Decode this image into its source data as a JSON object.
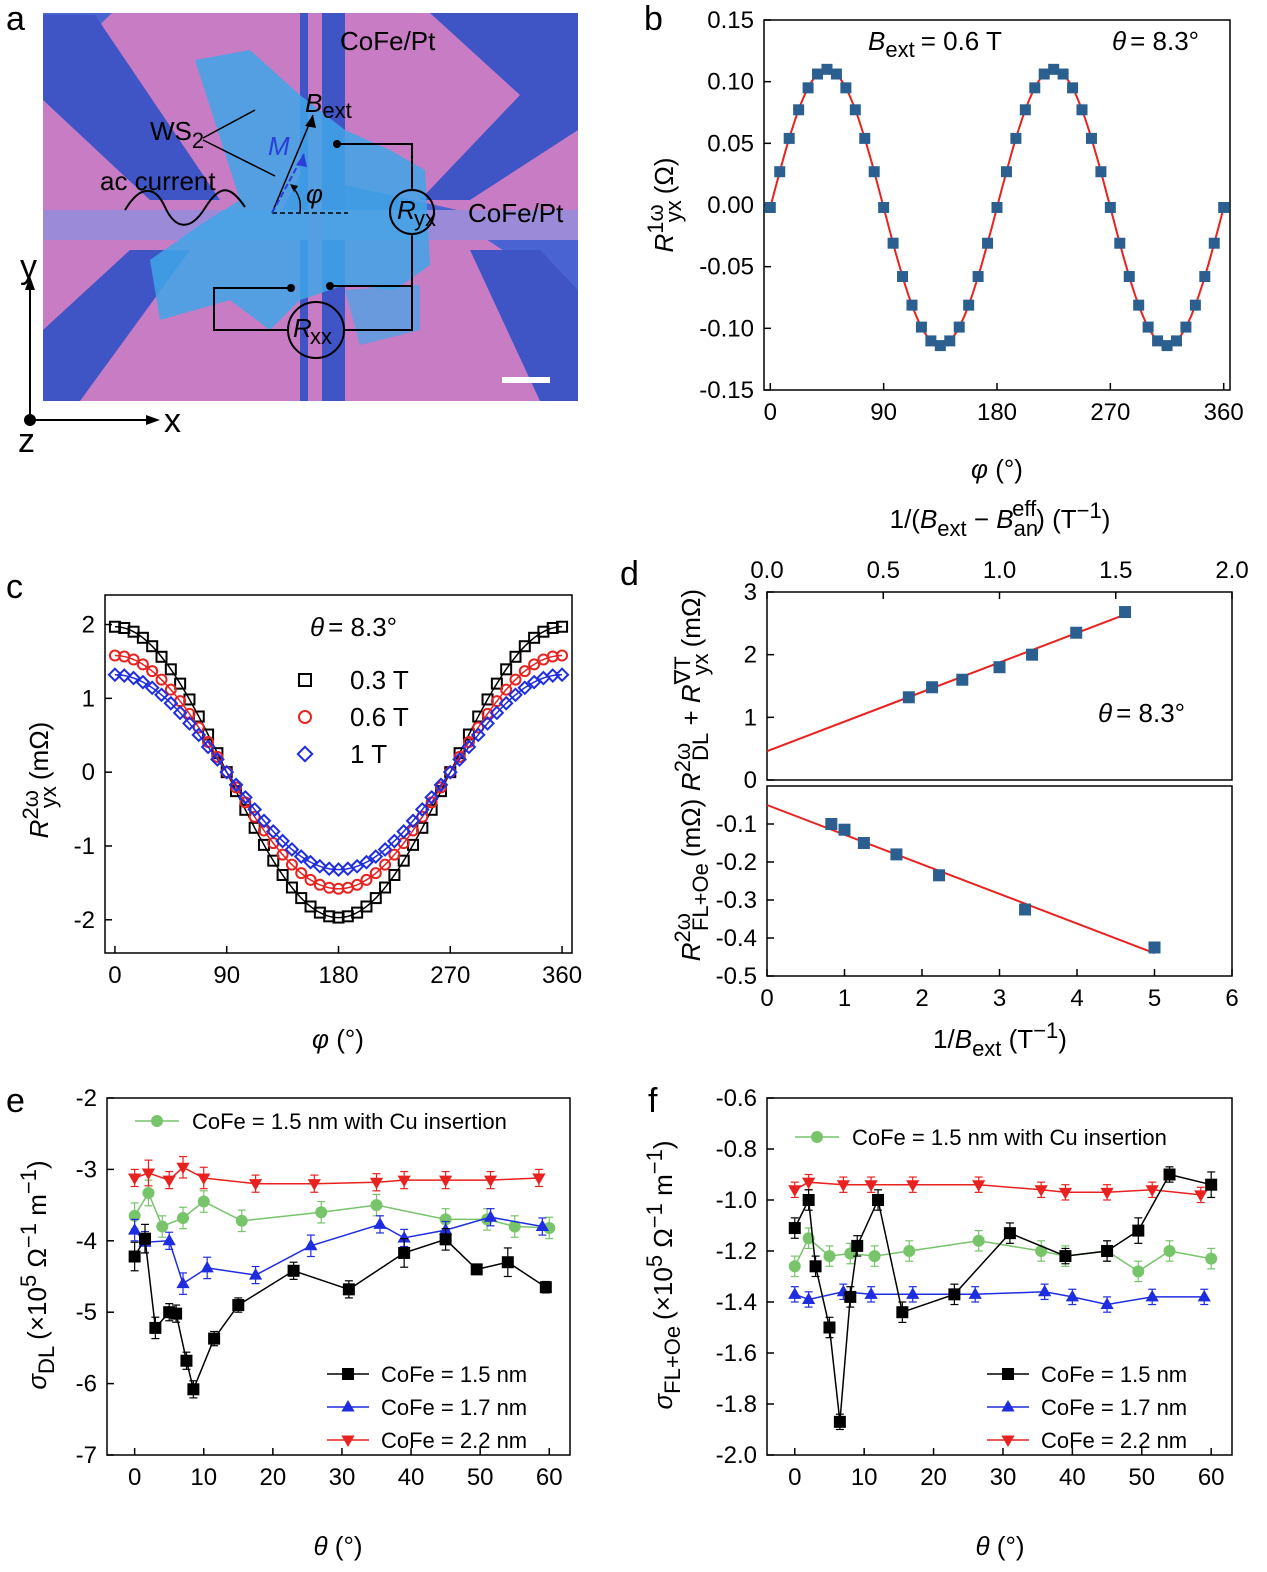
{
  "panel_letters": [
    "a",
    "b",
    "c",
    "d",
    "e",
    "f"
  ],
  "panel_a": {
    "labels": {
      "cofe_top": "CoFe/Pt",
      "cofe_right": "CoFe/Pt",
      "ws2_main": "WS",
      "ws2_sub": "2",
      "ac_current": "ac current",
      "m": "M",
      "b_main": "B",
      "b_sub": "ext",
      "phi": "φ",
      "r_main": "R",
      "ryx_sub": "yx",
      "rxx_sub": "xx"
    },
    "axes": {
      "x": "x",
      "y": "y",
      "z": "z"
    },
    "colors": {
      "substrate": "#4a63d2",
      "pads": "#c77cc4",
      "flake": "#40a6e8"
    }
  },
  "chart_data": [
    {
      "panel": "b",
      "type": "scatter",
      "xlabel": "φ (°)",
      "ylabel": "R_yx^1ω (Ω)",
      "xlim": [
        -5,
        365
      ],
      "ylim": [
        -0.15,
        0.15
      ],
      "xticks": [
        "0",
        "90",
        "180",
        "270",
        "360"
      ],
      "yticks": [
        "-0.15",
        "-0.10",
        "-0.05",
        "0.00",
        "0.05",
        "0.10",
        "0.15"
      ],
      "annotations": {
        "bext_main": "B",
        "bext_sub": "ext",
        "bext_val": "= 0.6 T",
        "theta_sym": "θ",
        "theta_val": "= 8.3°"
      },
      "model": "A*sin(2φ) + offset",
      "amplitude": 0.112,
      "offset": -0.002,
      "phi_start": 0,
      "phi_step": 7.5,
      "phi_end": 360,
      "marker_color": "#2b5f8f",
      "fit_color": "#e8221f",
      "grid": false
    },
    {
      "panel": "c",
      "type": "scatter",
      "xlabel": "φ (°)",
      "ylabel": "R_yx^2ω (mΩ)",
      "xlim": [
        -8,
        368
      ],
      "ylim": [
        -2.45,
        2.4
      ],
      "xticks": [
        "0",
        "90",
        "180",
        "270",
        "360"
      ],
      "yticks": [
        "-2",
        "-1",
        "0",
        "1",
        "2"
      ],
      "annotation": {
        "theta_sym": "θ",
        "theta_val": "= 8.3°"
      },
      "model": "A*cos(φ)",
      "phi_step": 7.5,
      "series": [
        {
          "name": "0.3 T",
          "amplitude": 1.97,
          "marker": "square",
          "color": "#000000"
        },
        {
          "name": "0.6 T",
          "amplitude": 1.58,
          "marker": "circle",
          "color": "#e8221f"
        },
        {
          "name": "1 T",
          "amplitude": 1.32,
          "marker": "diamond",
          "color": "#1f2de0"
        }
      ],
      "legend": "upper-center",
      "grid": false
    },
    {
      "panel": "d-top",
      "type": "scatter",
      "x_top_label": "1/(B_ext − B_an^eff) (T^−1)",
      "xlim": [
        0,
        2.0
      ],
      "ylim": [
        0,
        3
      ],
      "xticks_top": [
        "0.0",
        "0.5",
        "1.0",
        "1.5",
        "2.0"
      ],
      "yticks": [
        "0",
        "1",
        "2",
        "3"
      ],
      "ylabel": "R_DL^2ω + R_yx^∇T (mΩ)",
      "annotation": {
        "theta_sym": "θ",
        "theta_val": "= 8.3°"
      },
      "x": [
        0.61,
        0.71,
        0.84,
        1.0,
        1.14,
        1.33,
        1.54
      ],
      "y": [
        1.32,
        1.48,
        1.6,
        1.8,
        2.0,
        2.35,
        2.68
      ],
      "fit": {
        "x": [
          0,
          1.54
        ],
        "y": [
          0.46,
          2.64
        ]
      },
      "marker_color": "#2b5f8f",
      "fit_color": "#e8221f"
    },
    {
      "panel": "d-bottom",
      "type": "scatter",
      "xlabel": "1/B_ext (T^−1)",
      "xlim": [
        0,
        6
      ],
      "ylim": [
        -0.5,
        0
      ],
      "xticks": [
        "0",
        "1",
        "2",
        "3",
        "4",
        "5",
        "6"
      ],
      "yticks": [
        "-0.1",
        "-0.2",
        "-0.3",
        "-0.4",
        "-0.5"
      ],
      "ylabel": "R_FL+Oe^2ω (mΩ)",
      "x": [
        0.83,
        1.0,
        1.25,
        1.67,
        2.22,
        3.33,
        5.0
      ],
      "y": [
        -0.1,
        -0.115,
        -0.15,
        -0.18,
        -0.235,
        -0.325,
        -0.425
      ],
      "fit": {
        "x": [
          0,
          5.0
        ],
        "y": [
          -0.05,
          -0.44
        ]
      },
      "marker_color": "#2b5f8f",
      "fit_color": "#e8221f"
    },
    {
      "panel": "e",
      "type": "line",
      "xlabel": "θ (°)",
      "ylabel": "σ_DL (×10^5 Ω^−1 m^−1)",
      "xlim": [
        -4,
        63
      ],
      "ylim": [
        -7,
        -2
      ],
      "xticks": [
        "0",
        "10",
        "20",
        "30",
        "40",
        "50",
        "60"
      ],
      "yticks": [
        "-7",
        "-6",
        "-5",
        "-4",
        "-3",
        "-2"
      ],
      "series": [
        {
          "name": "CoFe = 1.5 nm with Cu insertion",
          "marker": "circle",
          "color": "#77c46b",
          "x": [
            0,
            2,
            4,
            7,
            10,
            15.5,
            27,
            35,
            45,
            51,
            55,
            60
          ],
          "y": [
            -3.65,
            -3.33,
            -3.8,
            -3.68,
            -3.45,
            -3.72,
            -3.6,
            -3.5,
            -3.7,
            -3.7,
            -3.8,
            -3.82
          ],
          "err": [
            0.18,
            0.18,
            0.15,
            0.15,
            0.15,
            0.15,
            0.15,
            0.15,
            0.15,
            0.15,
            0.15,
            0.15
          ]
        },
        {
          "name": "CoFe = 2.2 nm",
          "marker": "triangle-down",
          "color": "#e8221f",
          "x": [
            0,
            2,
            5,
            7,
            10,
            17.5,
            26,
            35,
            39,
            45,
            51.5,
            58.5
          ],
          "y": [
            -3.12,
            -3.05,
            -3.15,
            -2.97,
            -3.12,
            -3.2,
            -3.2,
            -3.18,
            -3.15,
            -3.15,
            -3.15,
            -3.12
          ],
          "err": [
            0.12,
            0.18,
            0.12,
            0.15,
            0.15,
            0.12,
            0.12,
            0.12,
            0.12,
            0.12,
            0.12,
            0.12
          ]
        },
        {
          "name": "CoFe = 1.7 nm",
          "marker": "triangle-up",
          "color": "#1f2de0",
          "x": [
            0,
            1.5,
            5,
            7,
            10.5,
            17.5,
            25.5,
            35.5,
            39,
            45,
            51.5,
            59
          ],
          "y": [
            -3.85,
            -4.02,
            -4.0,
            -4.6,
            -4.38,
            -4.48,
            -4.07,
            -3.77,
            -3.96,
            -3.85,
            -3.67,
            -3.8
          ],
          "err": [
            0.15,
            0.15,
            0.12,
            0.15,
            0.15,
            0.12,
            0.15,
            0.12,
            0.12,
            0.12,
            0.12,
            0.12
          ]
        },
        {
          "name": "CoFe = 1.5 nm",
          "marker": "square",
          "color": "#000000",
          "x": [
            0,
            1.5,
            3,
            5,
            6,
            7.5,
            8.5,
            11.5,
            15,
            23,
            31,
            39,
            45,
            49.5,
            54,
            59.5
          ],
          "y": [
            -4.22,
            -3.97,
            -5.22,
            -5.0,
            -5.02,
            -5.68,
            -6.08,
            -5.37,
            -4.9,
            -4.42,
            -4.68,
            -4.17,
            -3.98,
            -4.4,
            -4.3,
            -4.65
          ],
          "err": [
            0.2,
            0.2,
            0.15,
            0.12,
            0.12,
            0.12,
            0.12,
            0.1,
            0.1,
            0.12,
            0.12,
            0.2,
            0.15,
            0.05,
            0.2,
            0.08
          ]
        }
      ]
    },
    {
      "panel": "f",
      "type": "line",
      "xlabel": "θ (°)",
      "ylabel": "σ_FL+Oe (×10^5 Ω^−1 m^−1)",
      "xlim": [
        -4,
        63
      ],
      "ylim": [
        -2.0,
        -0.6
      ],
      "xticks": [
        "0",
        "10",
        "20",
        "30",
        "40",
        "50",
        "60"
      ],
      "yticks": [
        "-2.0",
        "-1.8",
        "-1.6",
        "-1.4",
        "-1.2",
        "-1.0",
        "-0.8",
        "-0.6"
      ],
      "series": [
        {
          "name": "CoFe = 1.5 nm with Cu insertion",
          "marker": "circle",
          "color": "#77c46b",
          "x": [
            0,
            2,
            5,
            8,
            11.5,
            16.5,
            26.5,
            35.5,
            39,
            45,
            49.5,
            54,
            60
          ],
          "y": [
            -1.26,
            -1.15,
            -1.22,
            -1.21,
            -1.22,
            -1.2,
            -1.16,
            -1.2,
            -1.22,
            -1.2,
            -1.28,
            -1.2,
            -1.23
          ],
          "err": [
            0.04,
            0.04,
            0.04,
            0.04,
            0.04,
            0.04,
            0.04,
            0.04,
            0.04,
            0.04,
            0.04,
            0.04,
            0.04
          ]
        },
        {
          "name": "CoFe = 2.2 nm",
          "marker": "triangle-down",
          "color": "#e8221f",
          "x": [
            0,
            2,
            7,
            11,
            17,
            26.5,
            35.5,
            39,
            45,
            51.5,
            58.5
          ],
          "y": [
            -0.96,
            -0.93,
            -0.94,
            -0.94,
            -0.94,
            -0.94,
            -0.96,
            -0.97,
            -0.97,
            -0.96,
            -0.98
          ],
          "err": [
            0.03,
            0.03,
            0.03,
            0.03,
            0.03,
            0.03,
            0.03,
            0.03,
            0.03,
            0.03,
            0.03
          ]
        },
        {
          "name": "CoFe = 1.7 nm",
          "marker": "triangle-up",
          "color": "#1f2de0",
          "x": [
            0,
            2,
            7,
            11,
            17,
            26,
            36,
            40,
            45,
            51.5,
            59
          ],
          "y": [
            -1.37,
            -1.39,
            -1.36,
            -1.37,
            -1.37,
            -1.37,
            -1.36,
            -1.38,
            -1.41,
            -1.38,
            -1.38
          ],
          "err": [
            0.03,
            0.03,
            0.03,
            0.03,
            0.03,
            0.03,
            0.03,
            0.03,
            0.03,
            0.03,
            0.03
          ]
        },
        {
          "name": "CoFe = 1.5 nm",
          "marker": "square",
          "color": "#000000",
          "x": [
            0,
            2,
            3,
            5,
            6.5,
            8,
            9,
            12,
            15.5,
            23,
            31,
            39,
            45,
            49.5,
            54,
            60
          ],
          "y": [
            -1.11,
            -1.0,
            -1.26,
            -1.5,
            -1.87,
            -1.38,
            -1.18,
            -1.0,
            -1.44,
            -1.37,
            -1.13,
            -1.22,
            -1.2,
            -1.12,
            -0.9,
            -0.94
          ],
          "err": [
            0.04,
            0.04,
            0.04,
            0.04,
            0.03,
            0.04,
            0.04,
            0.04,
            0.04,
            0.04,
            0.04,
            0.03,
            0.04,
            0.05,
            0.03,
            0.05
          ]
        }
      ]
    }
  ]
}
